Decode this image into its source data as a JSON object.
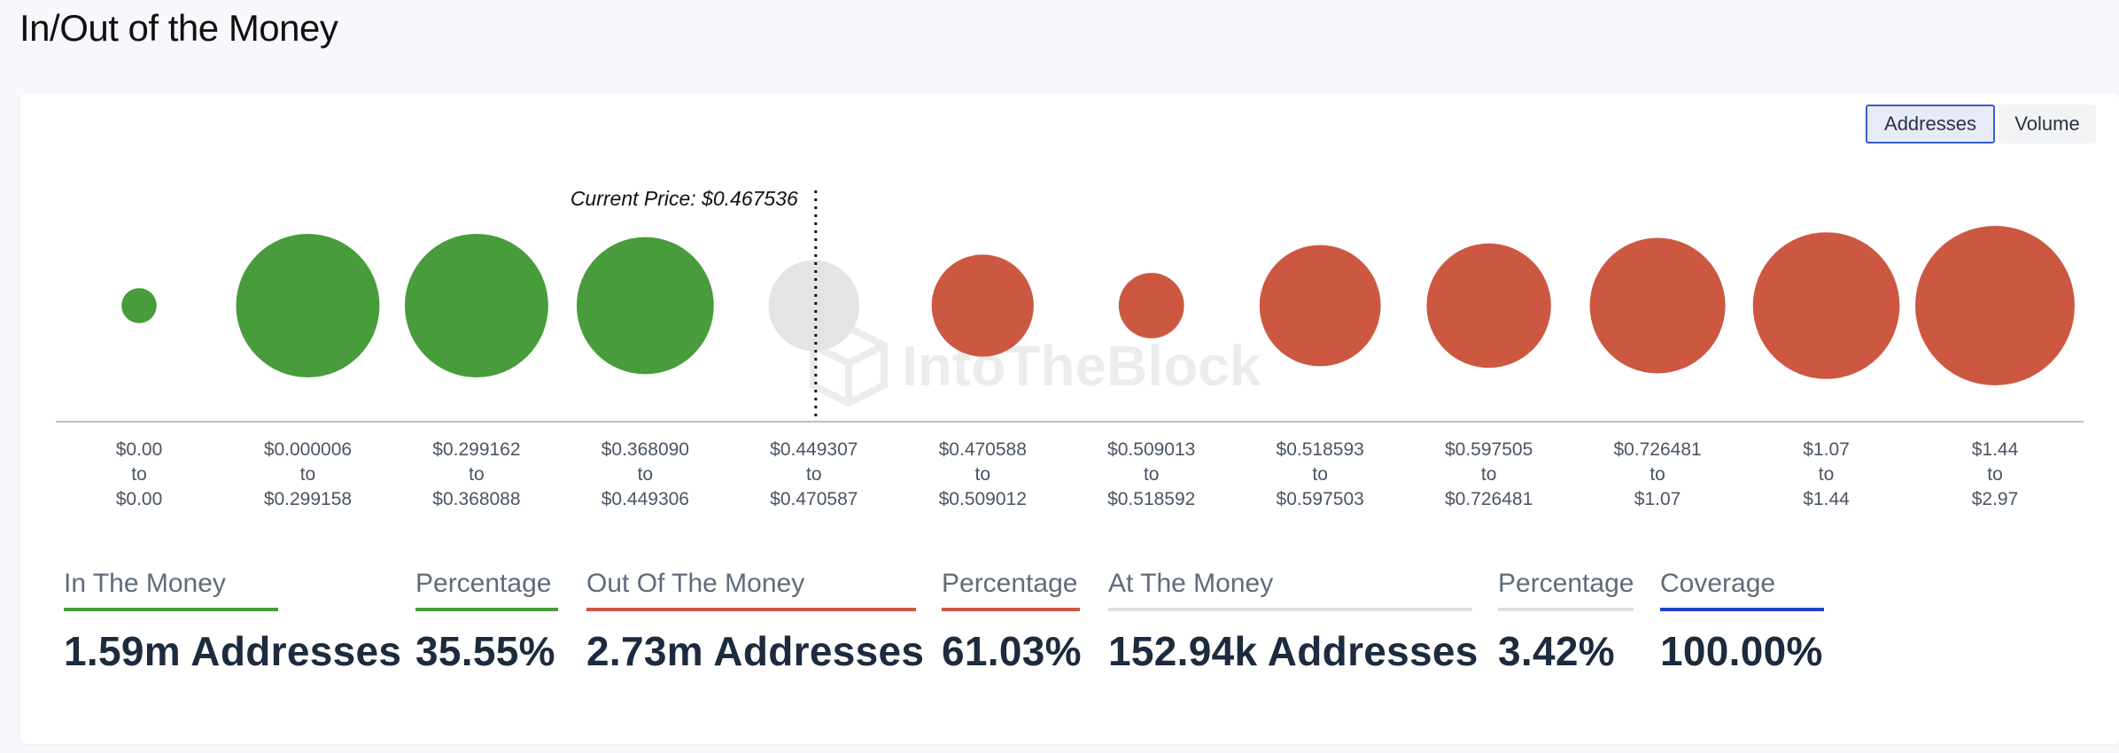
{
  "page": {
    "title": "In/Out of the Money"
  },
  "toggles": {
    "addresses_label": "Addresses",
    "volume_label": "Volume",
    "selected": "Addresses"
  },
  "watermark": "IntoTheBlock",
  "colors": {
    "in": "#489c3b",
    "out": "#cc5841",
    "at": "#e4e4e4",
    "coverage": "#2043c8",
    "at_bar": "#e0e0e0"
  },
  "chart_data": {
    "type": "bubble",
    "current_price_label": "Current Price: $0.467536",
    "current_price": 0.467536,
    "current_price_after_bucket": 3,
    "buckets": [
      {
        "from": "$0.00",
        "to": "$0.00",
        "status": "in",
        "relative_size": 0.22
      },
      {
        "from": "$0.000006",
        "to": "$0.299158",
        "status": "in",
        "relative_size": 0.9
      },
      {
        "from": "$0.299162",
        "to": "$0.368088",
        "status": "in",
        "relative_size": 0.9
      },
      {
        "from": "$0.368090",
        "to": "$0.449306",
        "status": "in",
        "relative_size": 0.86
      },
      {
        "from": "$0.449307",
        "to": "$0.470587",
        "status": "at",
        "relative_size": 0.57
      },
      {
        "from": "$0.470588",
        "to": "$0.509012",
        "status": "out",
        "relative_size": 0.64
      },
      {
        "from": "$0.509013",
        "to": "$0.518592",
        "status": "out",
        "relative_size": 0.41
      },
      {
        "from": "$0.518593",
        "to": "$0.597503",
        "status": "out",
        "relative_size": 0.76
      },
      {
        "from": "$0.597505",
        "to": "$0.726481",
        "status": "out",
        "relative_size": 0.78
      },
      {
        "from": "$0.726481",
        "to": "$1.07",
        "status": "out",
        "relative_size": 0.85
      },
      {
        "from": "$1.07",
        "to": "$1.44",
        "status": "out",
        "relative_size": 0.92
      },
      {
        "from": "$1.44",
        "to": "$2.97",
        "status": "out",
        "relative_size": 1.0
      }
    ],
    "range_connector": "to"
  },
  "stats": [
    {
      "key": "in_money",
      "label": "In The Money",
      "value": "1.59m Addresses",
      "color": "#489c3b"
    },
    {
      "key": "in_pct",
      "label": "Percentage",
      "value": "35.55%",
      "color": "#489c3b"
    },
    {
      "key": "out_money",
      "label": "Out Of The Money",
      "value": "2.73m Addresses",
      "color": "#cc5841"
    },
    {
      "key": "out_pct",
      "label": "Percentage",
      "value": "61.03%",
      "color": "#cc5841"
    },
    {
      "key": "at_money",
      "label": "At The Money",
      "value": "152.94k Addresses",
      "color": "#e0e0e0"
    },
    {
      "key": "at_pct",
      "label": "Percentage",
      "value": "3.42%",
      "color": "#e0e0e0"
    },
    {
      "key": "coverage",
      "label": "Coverage",
      "value": "100.00%",
      "color": "#2043c8"
    }
  ]
}
